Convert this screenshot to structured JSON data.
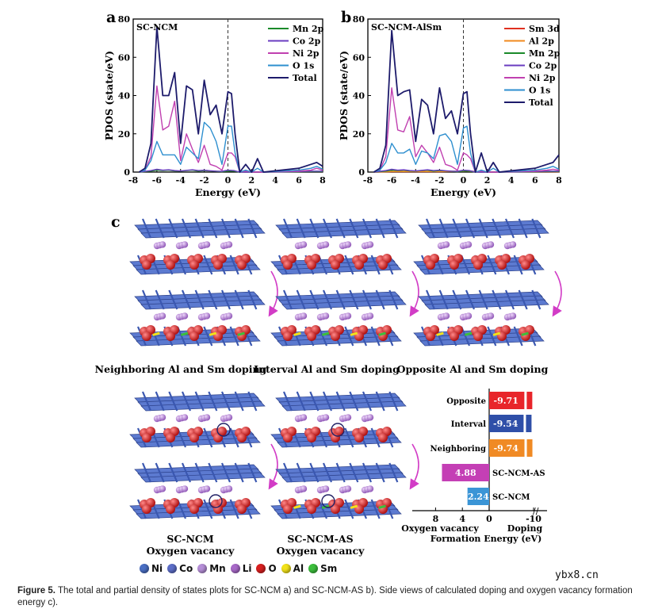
{
  "colors": {
    "mn": "#1a8a2a",
    "co": "#6a3cc0",
    "ni": "#c040b0",
    "o": "#2e8fcf",
    "total": "#1d1b6b",
    "sm": "#e03020",
    "al": "#f08a1e",
    "bar_opposite": "#e8252a",
    "bar_interval": "#2f4fa8",
    "bar_neighboring": "#f08a24",
    "bar_scncm_as": "#c43fb5",
    "bar_scncm": "#3b95d6",
    "arrow": "#d23cc6",
    "atom_ni": "#4a6fc4",
    "atom_co": "#5d6ec8",
    "atom_mn": "#b68fd8",
    "atom_li": "#a869c8",
    "atom_o": "#d92020",
    "atom_al": "#f2e21a",
    "atom_sm": "#3cbf3c"
  },
  "panel_a": {
    "letter": "a",
    "label": "SC-NCM",
    "xlabel": "Energy (eV)",
    "ylabel": "PDOS (state/eV)"
  },
  "panel_b": {
    "letter": "b",
    "label": "SC-NCM-AlSm",
    "xlabel": "Energy (eV)",
    "ylabel": "PDOS (state/eV)"
  },
  "panel_c": {
    "letter": "c",
    "structure_labels": [
      "Neighboring Al and Sm doping",
      "Interval Al and Sm doping",
      "Opposite Al and Sm doping"
    ],
    "vacancy_labels": [
      {
        "line1": "SC-NCM",
        "line2": "Oxygen vacancy"
      },
      {
        "line1": "SC-NCM-AS",
        "line2": "Oxygen vacancy"
      }
    ],
    "atom_legend": [
      {
        "symbol": "Ni",
        "color_key": "atom_ni"
      },
      {
        "symbol": "Co",
        "color_key": "atom_co"
      },
      {
        "symbol": "Mn",
        "color_key": "atom_mn"
      },
      {
        "symbol": "Li",
        "color_key": "atom_li"
      },
      {
        "symbol": "O",
        "color_key": "atom_o"
      },
      {
        "symbol": "Al",
        "color_key": "atom_al"
      },
      {
        "symbol": "Sm",
        "color_key": "atom_sm"
      }
    ]
  },
  "chart_data": [
    {
      "type": "line",
      "panel": "a",
      "title": "SC-NCM",
      "xlabel": "Energy (eV)",
      "ylabel": "PDOS (state/eV)",
      "xlim": [
        -8,
        8
      ],
      "ylim": [
        0,
        80
      ],
      "xticks": [
        -8,
        -6,
        -4,
        -2,
        0,
        2,
        4,
        6,
        8
      ],
      "yticks": [
        0,
        20,
        40,
        60,
        80
      ],
      "fermi_line": 0,
      "legend_position": "top-right",
      "series": [
        {
          "name": "Mn 2p",
          "color_key": "mn",
          "x": [
            -7.5,
            -6.5,
            -6,
            -5.5,
            -5,
            -4.5,
            -4,
            -3.5,
            -3,
            -2.5,
            -2,
            -1.5,
            -1,
            -0.5,
            0,
            0.5,
            1,
            2,
            3,
            6,
            7,
            8
          ],
          "y": [
            0,
            0.5,
            1,
            0.8,
            1,
            0.6,
            0.5,
            0.8,
            1,
            0.5,
            0.8,
            0.6,
            0.4,
            0.2,
            0.5,
            0.5,
            0,
            0,
            0,
            0.2,
            0.3,
            0.3
          ]
        },
        {
          "name": "Co 2p",
          "color_key": "co",
          "x": [
            -7.5,
            -6.5,
            -6,
            -5.5,
            -5,
            -4.5,
            -4,
            -3.5,
            -3,
            -2.5,
            -2,
            -1.5,
            -1,
            -0.5,
            0,
            0.5,
            1,
            2,
            3,
            6,
            7,
            8
          ],
          "y": [
            0,
            0.8,
            1.5,
            1,
            1.2,
            0.8,
            0.6,
            0.9,
            1.2,
            0.8,
            1,
            0.7,
            0.5,
            0.4,
            1,
            0.8,
            0,
            0,
            0,
            0.3,
            0.5,
            0.5
          ]
        },
        {
          "name": "Ni 2p",
          "color_key": "ni",
          "x": [
            -7.5,
            -7,
            -6.5,
            -6,
            -5.5,
            -5,
            -4.5,
            -4,
            -3.5,
            -3,
            -2.5,
            -2,
            -1.5,
            -1,
            -0.5,
            0,
            0.3,
            0.6,
            1,
            1.5,
            2,
            2.5,
            3,
            6,
            7,
            7.5,
            8
          ],
          "y": [
            0,
            1,
            8,
            45,
            22,
            24,
            37,
            6,
            20,
            12,
            5,
            14,
            4,
            3,
            1,
            10,
            10,
            8,
            0,
            0.5,
            0,
            0,
            0,
            0.5,
            1,
            2,
            1
          ]
        },
        {
          "name": "O 1s",
          "color_key": "o",
          "x": [
            -7.5,
            -7,
            -6.5,
            -6,
            -5.5,
            -5,
            -4.5,
            -4,
            -3.5,
            -3,
            -2.5,
            -2,
            -1.5,
            -1,
            -0.5,
            0,
            0.3,
            0.6,
            1,
            1.5,
            2,
            2.5,
            3,
            6,
            7,
            7.5,
            8
          ],
          "y": [
            0,
            1,
            6,
            16,
            9,
            9,
            9,
            4,
            13,
            10,
            7,
            26,
            23,
            16,
            4,
            24,
            24,
            10,
            0,
            1,
            0,
            2,
            0,
            1,
            2,
            3,
            1.5
          ]
        },
        {
          "name": "Total",
          "color_key": "total",
          "x": [
            -7.5,
            -7,
            -6.5,
            -6,
            -5.5,
            -5,
            -4.5,
            -4,
            -3.5,
            -3,
            -2.5,
            -2,
            -1.5,
            -1,
            -0.5,
            0,
            0.3,
            0.6,
            1,
            1.5,
            2,
            2.5,
            3,
            6,
            7,
            7.5,
            8
          ],
          "y": [
            0,
            2,
            15,
            76,
            40,
            40,
            52,
            15,
            45,
            43,
            20,
            48,
            30,
            35,
            20,
            42,
            41,
            20,
            0,
            4,
            0,
            7,
            0,
            2,
            4,
            5,
            3
          ]
        }
      ]
    },
    {
      "type": "line",
      "panel": "b",
      "title": "SC-NCM-AlSm",
      "xlabel": "Energy (eV)",
      "ylabel": "PDOS (state/eV)",
      "xlim": [
        -8,
        8
      ],
      "ylim": [
        0,
        80
      ],
      "xticks": [
        -8,
        -6,
        -4,
        -2,
        0,
        2,
        4,
        6,
        8
      ],
      "yticks": [
        0,
        20,
        40,
        60,
        80
      ],
      "fermi_line": 0,
      "legend_position": "top-right",
      "series": [
        {
          "name": "Sm 3d",
          "color_key": "sm",
          "x": [
            -7.5,
            -6,
            -4,
            -2,
            0,
            0.5,
            1,
            2,
            4,
            6,
            8
          ],
          "y": [
            0,
            0.2,
            0.2,
            0.2,
            0.4,
            0.6,
            0.3,
            0.1,
            0.1,
            0.2,
            0.2
          ]
        },
        {
          "name": "Al 2p",
          "color_key": "al",
          "x": [
            -7.5,
            -6,
            -4,
            -2,
            0,
            0.5,
            1,
            2,
            4,
            6,
            8
          ],
          "y": [
            0,
            0.3,
            0.3,
            0.3,
            0.5,
            0.4,
            0.2,
            0.1,
            0.1,
            0.3,
            0.2
          ]
        },
        {
          "name": "Mn 2p",
          "color_key": "mn",
          "x": [
            -7.5,
            -6.5,
            -6,
            -5.5,
            -5,
            -4.5,
            -4,
            -3.5,
            -3,
            -2.5,
            -2,
            -1.5,
            -1,
            -0.5,
            0,
            0.5,
            1,
            2,
            3,
            6,
            7,
            8
          ],
          "y": [
            0,
            0.5,
            1,
            0.8,
            1,
            0.6,
            0.5,
            0.8,
            1,
            0.5,
            0.8,
            0.6,
            0.4,
            0.2,
            0.5,
            0.5,
            0,
            0,
            0,
            0.2,
            0.3,
            0.3
          ]
        },
        {
          "name": "Co 2p",
          "color_key": "co",
          "x": [
            -7.5,
            -6.5,
            -6,
            -5.5,
            -5,
            -4.5,
            -4,
            -3.5,
            -3,
            -2.5,
            -2,
            -1.5,
            -1,
            -0.5,
            0,
            0.5,
            1,
            2,
            3,
            6,
            7,
            8
          ],
          "y": [
            0,
            0.8,
            1.5,
            1,
            1.2,
            0.8,
            0.6,
            0.9,
            1.2,
            0.8,
            1,
            0.7,
            0.5,
            0.4,
            1,
            0.8,
            0,
            0,
            0,
            0.3,
            0.5,
            0.5
          ]
        },
        {
          "name": "Ni 2p",
          "color_key": "ni",
          "x": [
            -7.5,
            -7,
            -6.5,
            -6,
            -5.5,
            -5,
            -4.5,
            -4,
            -3.5,
            -3,
            -2.5,
            -2,
            -1.5,
            -1,
            -0.5,
            0,
            0.3,
            0.6,
            1,
            1.5,
            2,
            2.5,
            3,
            6,
            7,
            7.5,
            8
          ],
          "y": [
            0,
            1,
            8,
            44,
            22,
            21,
            29,
            8,
            14,
            10,
            5,
            13,
            4,
            3,
            1,
            10,
            9,
            7,
            0,
            0.5,
            0,
            0,
            0,
            0.5,
            1,
            1.5,
            1
          ]
        },
        {
          "name": "O 1s",
          "color_key": "o",
          "x": [
            -7.5,
            -7,
            -6.5,
            -6,
            -5.5,
            -5,
            -4.5,
            -4,
            -3.5,
            -3,
            -2.5,
            -2,
            -1.5,
            -1,
            -0.5,
            0,
            0.3,
            0.6,
            1,
            1.5,
            2,
            2.5,
            3,
            6,
            7,
            7.5,
            8
          ],
          "y": [
            0,
            1,
            5,
            15,
            10,
            10,
            12,
            4,
            11,
            10,
            7,
            19,
            20,
            16,
            4,
            23,
            24,
            10,
            0,
            1,
            0,
            2,
            0,
            1,
            2,
            3,
            1.5
          ]
        },
        {
          "name": "Total",
          "color_key": "total",
          "x": [
            -7.5,
            -7,
            -6.5,
            -6,
            -5.5,
            -5,
            -4.5,
            -4,
            -3.5,
            -3,
            -2.5,
            -2,
            -1.5,
            -1,
            -0.5,
            0,
            0.3,
            0.6,
            1,
            1.5,
            2,
            2.5,
            3,
            6,
            7,
            7.5,
            8
          ],
          "y": [
            0,
            2,
            14,
            74,
            40,
            42,
            43,
            16,
            38,
            35,
            20,
            44,
            28,
            32,
            20,
            41,
            42,
            20,
            0,
            10,
            0,
            5,
            0,
            2,
            4,
            5,
            9
          ]
        }
      ]
    },
    {
      "type": "bar",
      "orientation": "horizontal",
      "panel": "c-inset",
      "xlabel": "Formation Energy (eV)",
      "x_left_label": "Oxygen vacancy",
      "x_right_label": "Doping",
      "xticks": [
        "8",
        "4",
        "0",
        "-10"
      ],
      "axis_break": true,
      "categories": [
        "Opposite",
        "Interval",
        "Neighboring",
        "SC-NCM-AS",
        "SC-NCM"
      ],
      "values": [
        -9.71,
        -9.54,
        -9.74,
        4.88,
        2.24
      ],
      "value_labels": [
        "-9.71",
        "-9.54",
        "-9.74",
        "4.88",
        "2.24"
      ],
      "groups": [
        "Doping",
        "Doping",
        "Doping",
        "Oxygen vacancy",
        "Oxygen vacancy"
      ],
      "color_keys": [
        "bar_opposite",
        "bar_interval",
        "bar_neighboring",
        "bar_scncm_as",
        "bar_scncm"
      ]
    }
  ],
  "caption": {
    "lead": "Figure 5.",
    "text": "The total and partial density of states plots for SC-NCM a) and SC-NCM-AS b). Side views of calculated doping and oxygen vacancy formation energy c)."
  },
  "watermark": "ybx8.cn"
}
